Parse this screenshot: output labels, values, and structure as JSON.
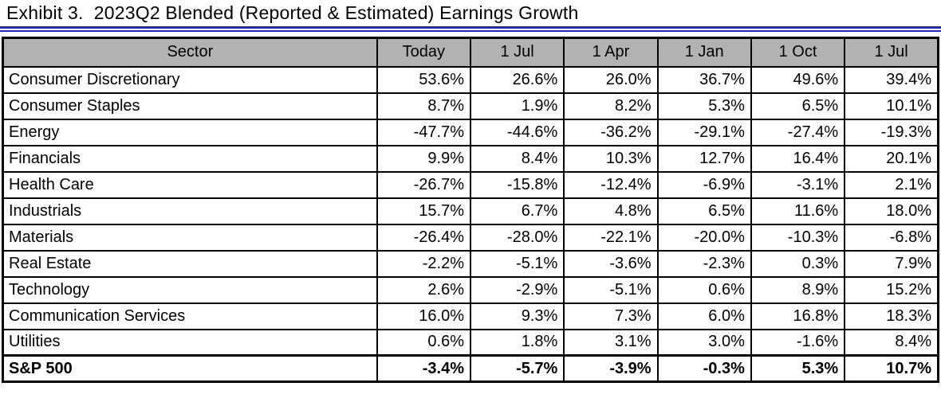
{
  "title": {
    "text": "Exhibit 3.  2023Q2 Blended (Reported & Estimated) Earnings Growth"
  },
  "colors": {
    "title_rule_blue": "#2121de",
    "header_background": "#b2b2b2",
    "grid_border": "#000000"
  },
  "table": {
    "columns": [
      "Sector",
      "Today",
      "1 Jul",
      "1 Apr",
      "1 Jan",
      "1 Oct",
      "1 Jul"
    ],
    "rows": [
      {
        "sector": "Consumer Discretionary",
        "values": [
          "53.6%",
          "26.6%",
          "26.0%",
          "36.7%",
          "49.6%",
          "39.4%"
        ],
        "bold": false
      },
      {
        "sector": "Consumer Staples",
        "values": [
          "8.7%",
          "1.9%",
          "8.2%",
          "5.3%",
          "6.5%",
          "10.1%"
        ],
        "bold": false
      },
      {
        "sector": "Energy",
        "values": [
          "-47.7%",
          "-44.6%",
          "-36.2%",
          "-29.1%",
          "-27.4%",
          "-19.3%"
        ],
        "bold": false
      },
      {
        "sector": "Financials",
        "values": [
          "9.9%",
          "8.4%",
          "10.3%",
          "12.7%",
          "16.4%",
          "20.1%"
        ],
        "bold": false
      },
      {
        "sector": "Health Care",
        "values": [
          "-26.7%",
          "-15.8%",
          "-12.4%",
          "-6.9%",
          "-3.1%",
          "2.1%"
        ],
        "bold": false
      },
      {
        "sector": "Industrials",
        "values": [
          "15.7%",
          "6.7%",
          "4.8%",
          "6.5%",
          "11.6%",
          "18.0%"
        ],
        "bold": false
      },
      {
        "sector": "Materials",
        "values": [
          "-26.4%",
          "-28.0%",
          "-22.1%",
          "-20.0%",
          "-10.3%",
          "-6.8%"
        ],
        "bold": false
      },
      {
        "sector": "Real Estate",
        "values": [
          "-2.2%",
          "-5.1%",
          "-3.6%",
          "-2.3%",
          "0.3%",
          "7.9%"
        ],
        "bold": false
      },
      {
        "sector": "Technology",
        "values": [
          "2.6%",
          "-2.9%",
          "-5.1%",
          "0.6%",
          "8.9%",
          "15.2%"
        ],
        "bold": false
      },
      {
        "sector": "Communication Services",
        "values": [
          "16.0%",
          "9.3%",
          "7.3%",
          "6.0%",
          "16.8%",
          "18.3%"
        ],
        "bold": false
      },
      {
        "sector": "Utilities",
        "values": [
          "0.6%",
          "1.8%",
          "3.1%",
          "3.0%",
          "-1.6%",
          "8.4%"
        ],
        "bold": false
      },
      {
        "sector": "S&P 500",
        "values": [
          "-3.4%",
          "-5.7%",
          "-3.9%",
          "-0.3%",
          "5.3%",
          "10.7%"
        ],
        "bold": true
      }
    ]
  },
  "chart_data": {
    "type": "table",
    "title": "Exhibit 3. 2023Q2 Blended (Reported & Estimated) Earnings Growth",
    "columns": [
      "Sector",
      "Today",
      "1 Jul",
      "1 Apr",
      "1 Jan",
      "1 Oct",
      "1 Jul"
    ],
    "unit": "%",
    "rows": [
      {
        "sector": "Consumer Discretionary",
        "values": [
          53.6,
          26.6,
          26.0,
          36.7,
          49.6,
          39.4
        ]
      },
      {
        "sector": "Consumer Staples",
        "values": [
          8.7,
          1.9,
          8.2,
          5.3,
          6.5,
          10.1
        ]
      },
      {
        "sector": "Energy",
        "values": [
          -47.7,
          -44.6,
          -36.2,
          -29.1,
          -27.4,
          -19.3
        ]
      },
      {
        "sector": "Financials",
        "values": [
          9.9,
          8.4,
          10.3,
          12.7,
          16.4,
          20.1
        ]
      },
      {
        "sector": "Health Care",
        "values": [
          -26.7,
          -15.8,
          -12.4,
          -6.9,
          -3.1,
          2.1
        ]
      },
      {
        "sector": "Industrials",
        "values": [
          15.7,
          6.7,
          4.8,
          6.5,
          11.6,
          18.0
        ]
      },
      {
        "sector": "Materials",
        "values": [
          -26.4,
          -28.0,
          -22.1,
          -20.0,
          -10.3,
          -6.8
        ]
      },
      {
        "sector": "Real Estate",
        "values": [
          -2.2,
          -5.1,
          -3.6,
          -2.3,
          0.3,
          7.9
        ]
      },
      {
        "sector": "Technology",
        "values": [
          2.6,
          -2.9,
          -5.1,
          0.6,
          8.9,
          15.2
        ]
      },
      {
        "sector": "Communication Services",
        "values": [
          16.0,
          9.3,
          7.3,
          6.0,
          16.8,
          18.3
        ]
      },
      {
        "sector": "Utilities",
        "values": [
          0.6,
          1.8,
          3.1,
          3.0,
          -1.6,
          8.4
        ]
      },
      {
        "sector": "S&P 500",
        "values": [
          -3.4,
          -5.7,
          -3.9,
          -0.3,
          5.3,
          10.7
        ]
      }
    ]
  }
}
